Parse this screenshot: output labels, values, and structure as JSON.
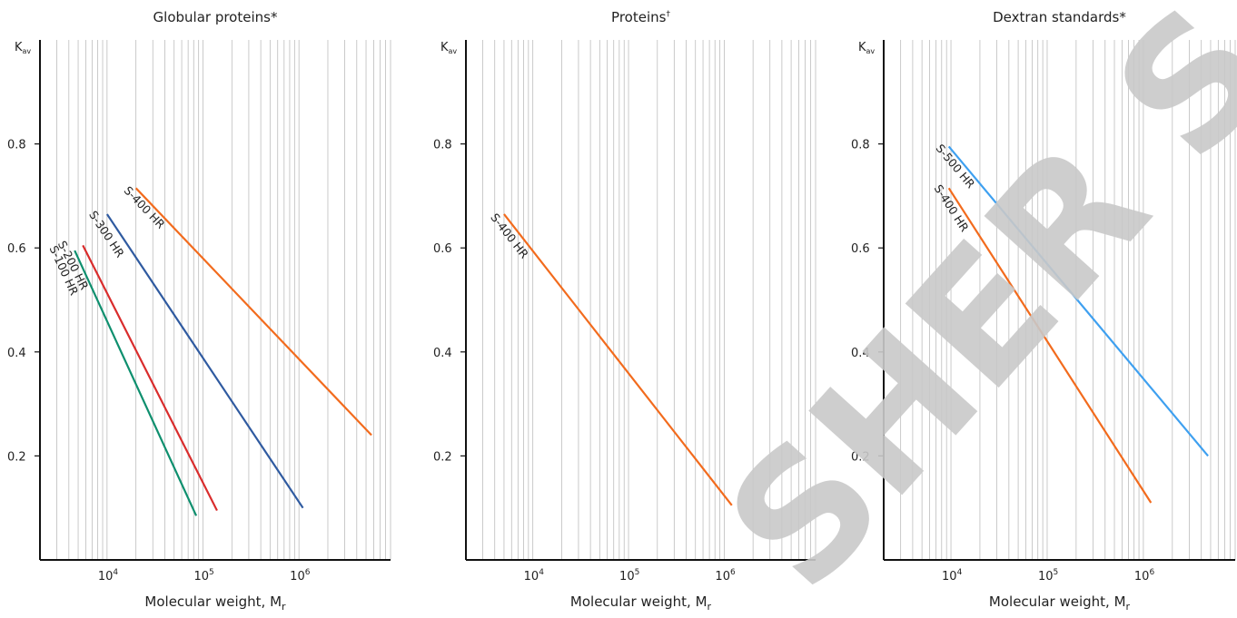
{
  "watermark": "SHER SAS",
  "colors": {
    "orange": "#f26b1d",
    "navy": "#2f5aa0",
    "red": "#d92c2c",
    "green": "#0e8f6e",
    "lightblue": "#3ea0f0",
    "grid": "#bdbdbd",
    "axis": "#111111"
  },
  "chart_data": [
    {
      "type": "line",
      "title": "Globular proteins*",
      "xlabel": "Molecular weight, M",
      "xlabel_sub": "r",
      "ylabel": "K",
      "ylabel_sub": "av",
      "x_scale": "log",
      "xlim": [
        2000,
        9000000
      ],
      "ylim": [
        0,
        1.0
      ],
      "x_ticks": [
        {
          "base": "10",
          "exp": "4",
          "value": 10000
        },
        {
          "base": "10",
          "exp": "5",
          "value": 100000
        },
        {
          "base": "10",
          "exp": "6",
          "value": 1000000
        }
      ],
      "y_ticks": [
        "0.2",
        "0.4",
        "0.6",
        "0.8"
      ],
      "grid": "vertical minor log",
      "series": [
        {
          "name": "S-100 HR",
          "color": "#0e8f6e",
          "x": [
            4600,
            85000
          ],
          "y": [
            0.595,
            0.085
          ]
        },
        {
          "name": "S-200 HR",
          "color": "#d92c2c",
          "x": [
            5600,
            140000
          ],
          "y": [
            0.605,
            0.095
          ]
        },
        {
          "name": "S-300 HR",
          "color": "#2f5aa0",
          "x": [
            10000,
            1100000
          ],
          "y": [
            0.665,
            0.1
          ]
        },
        {
          "name": "S-400 HR",
          "color": "#f26b1d",
          "x": [
            20000,
            5700000
          ],
          "y": [
            0.715,
            0.24
          ]
        }
      ]
    },
    {
      "type": "line",
      "title": "Proteins",
      "title_sup": "†",
      "xlabel": "Molecular weight, M",
      "xlabel_sub": "r",
      "ylabel": "K",
      "ylabel_sub": "av",
      "x_scale": "log",
      "xlim": [
        2000,
        9000000
      ],
      "ylim": [
        0,
        1.0
      ],
      "x_ticks": [
        {
          "base": "10",
          "exp": "4",
          "value": 10000
        },
        {
          "base": "10",
          "exp": "5",
          "value": 100000
        },
        {
          "base": "10",
          "exp": "6",
          "value": 1000000
        }
      ],
      "y_ticks": [
        "0.2",
        "0.4",
        "0.6",
        "0.8"
      ],
      "grid": "vertical minor log",
      "series": [
        {
          "name": "S-400 HR",
          "color": "#f26b1d",
          "x": [
            5000,
            1200000
          ],
          "y": [
            0.665,
            0.105
          ]
        }
      ]
    },
    {
      "type": "line",
      "title": "Dextran standards*",
      "xlabel": "Molecular weight, M",
      "xlabel_sub": "r",
      "ylabel": "K",
      "ylabel_sub": "av",
      "x_scale": "log",
      "xlim": [
        2000,
        9000000
      ],
      "ylim": [
        0,
        1.0
      ],
      "x_ticks": [
        {
          "base": "10",
          "exp": "4",
          "value": 10000
        },
        {
          "base": "10",
          "exp": "5",
          "value": 100000
        },
        {
          "base": "10",
          "exp": "6",
          "value": 1000000
        }
      ],
      "y_ticks": [
        "0.2",
        "0.4",
        "0.6",
        "0.8"
      ],
      "grid": "vertical minor log",
      "series": [
        {
          "name": "S-500 HR",
          "color": "#3ea0f0",
          "x": [
            9500,
            4700000
          ],
          "y": [
            0.795,
            0.2
          ]
        },
        {
          "name": "S-400 HR",
          "color": "#f26b1d",
          "x": [
            9500,
            1200000
          ],
          "y": [
            0.715,
            0.11
          ]
        }
      ]
    }
  ]
}
